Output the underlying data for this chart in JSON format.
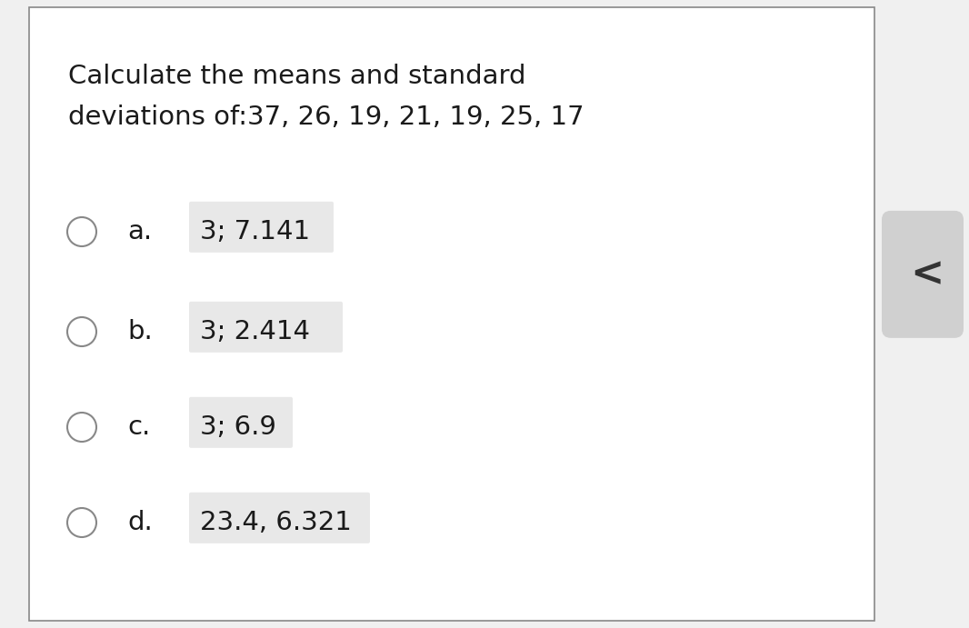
{
  "title_line1": "Calculate the means and standard",
  "title_line2": "deviations of:37, 26, 19, 21, 19, 25, 17",
  "options": [
    {
      "label": "a.",
      "text": "3; 7.141"
    },
    {
      "label": "b.",
      "text": "3; 2.414"
    },
    {
      "label": "c.",
      "text": "3; 6.9"
    },
    {
      "label": "d.",
      "text": "23.4, 6.321"
    }
  ],
  "bg_color": "#ffffff",
  "outer_bg": "#f0f0f0",
  "border_color": "#888888",
  "text_color": "#1a1a1a",
  "highlight_color": "#e8e8e8",
  "circle_edge_color": "#888888",
  "title_fontsize": 21,
  "option_fontsize": 21,
  "figsize": [
    10.66,
    6.91
  ],
  "dpi": 100
}
